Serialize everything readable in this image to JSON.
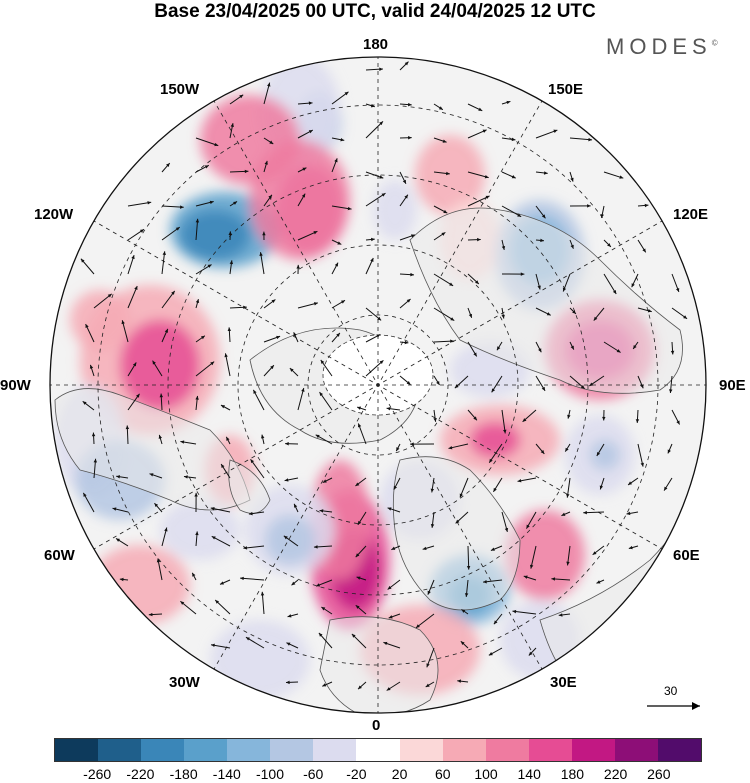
{
  "header": {
    "title": "Base 23/04/2025 00 UTC, valid 24/04/2025 12 UTC",
    "brand": "MODES",
    "brand_mark": "©"
  },
  "map": {
    "projection": "north-polar-stereographic",
    "longitude_labels": {
      "n180": "180",
      "w150": "150W",
      "e150": "150E",
      "w120": "120W",
      "e120": "120E",
      "w90": "90W",
      "e90": "90E",
      "w60": "60W",
      "e60": "60E",
      "w30": "30W",
      "e30": "30E",
      "s0": "0"
    },
    "reference_vector_label": "30",
    "field_colors": {
      "land": "#e9e9e9",
      "ocean_bg": "#ffffff",
      "coast": "#555555"
    }
  },
  "colorbar": {
    "colors": [
      "#0d3a5c",
      "#1f5f8b",
      "#3a86b8",
      "#5aa0cb",
      "#86b6db",
      "#b4c7e3",
      "#dcdcef",
      "#ffffff",
      "#fbd8d8",
      "#f6aab5",
      "#ef7ba0",
      "#e64c94",
      "#c21883",
      "#8d0e77",
      "#520c6b"
    ],
    "ticks": [
      "-260",
      "-220",
      "-180",
      "-140",
      "-100",
      "-60",
      "-20",
      "20",
      "60",
      "100",
      "140",
      "180",
      "220",
      "260"
    ]
  }
}
